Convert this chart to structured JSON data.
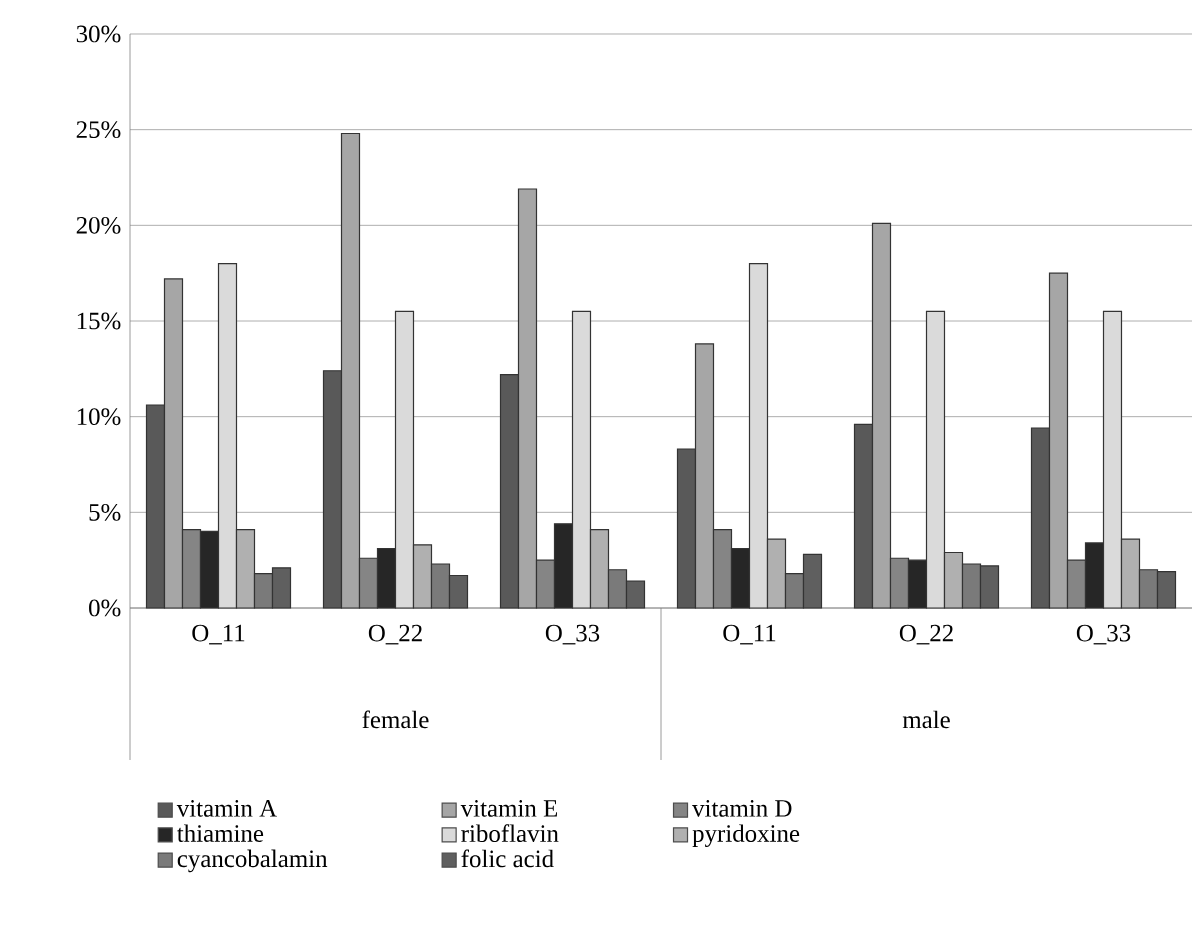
{
  "chart_data": {
    "type": "bar",
    "categories": [
      "O_11",
      "O_22",
      "O_33",
      "O_11",
      "O_22",
      "O_33"
    ],
    "annotations": [
      "female",
      "male"
    ],
    "series": [
      {
        "name": "vitamin A",
        "color": "#595959",
        "values": [
          10.6,
          12.4,
          12.2,
          8.3,
          9.6,
          9.4
        ]
      },
      {
        "name": "vitamin E",
        "color": "#a6a6a6",
        "values": [
          17.2,
          24.8,
          21.9,
          13.8,
          20.1,
          17.5
        ]
      },
      {
        "name": "vitamin D",
        "color": "#858585",
        "values": [
          4.1,
          2.6,
          2.5,
          4.1,
          2.6,
          2.5
        ]
      },
      {
        "name": "thiamine",
        "color": "#262626",
        "values": [
          4.0,
          3.1,
          4.4,
          3.1,
          2.5,
          3.4
        ]
      },
      {
        "name": "riboflavin",
        "color": "#dadada",
        "values": [
          18.0,
          15.5,
          15.5,
          18.0,
          15.5,
          15.5
        ]
      },
      {
        "name": "pyridoxine",
        "color": "#b0b0b0",
        "values": [
          4.1,
          3.3,
          4.1,
          3.6,
          2.9,
          3.6
        ]
      },
      {
        "name": "cyancobalamin",
        "color": "#7a7a7a",
        "values": [
          1.8,
          2.3,
          2.0,
          1.8,
          2.3,
          2.0
        ]
      },
      {
        "name": "folic acid",
        "color": "#5f5f5f",
        "values": [
          2.1,
          1.7,
          1.4,
          2.8,
          2.2,
          1.9
        ]
      }
    ],
    "ylim": [
      0,
      30
    ],
    "yticks": [
      {
        "value": 0,
        "label": "0%"
      },
      {
        "value": 5,
        "label": "5%"
      },
      {
        "value": 10,
        "label": "10%"
      },
      {
        "value": 15,
        "label": "15%"
      },
      {
        "value": 20,
        "label": "20%"
      },
      {
        "value": 25,
        "label": "25%"
      },
      {
        "value": 30,
        "label": "30%"
      }
    ],
    "grid": "y",
    "legend": "bottom"
  }
}
